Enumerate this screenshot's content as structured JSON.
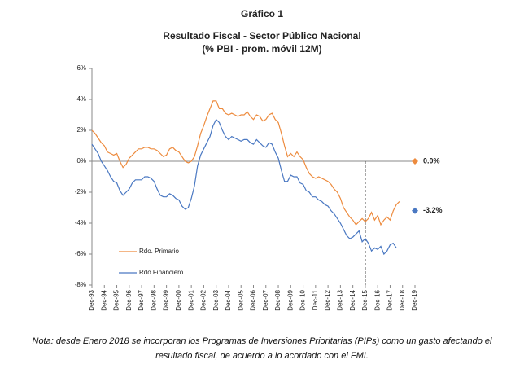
{
  "chart_data": {
    "type": "line",
    "label": "Gráfico 1",
    "title": "Resultado Fiscal - Sector Público Nacional",
    "subtitle": "(% PBI - prom. móvil 12M)",
    "note": "Nota: desde Enero 2018 se incorporan los Programas de Inversiones Prioritarias (PIPs) como un gasto afectando el resultado fiscal, de acuerdo a lo acordado con el FMI.",
    "categories": [
      "Dec-93",
      null,
      null,
      null,
      "Dec-94",
      null,
      null,
      null,
      "Dec-95",
      null,
      null,
      null,
      "Dec-96",
      null,
      null,
      null,
      "Dec-97",
      null,
      null,
      null,
      "Dec-98",
      null,
      null,
      null,
      "Dec-99",
      null,
      null,
      null,
      "Dec-00",
      null,
      null,
      null,
      "Dec-01",
      null,
      null,
      null,
      "Dec-02",
      null,
      null,
      null,
      "Dec-03",
      null,
      null,
      null,
      "Dec-04",
      null,
      null,
      null,
      "Dec-05",
      null,
      null,
      null,
      "Dec-06",
      null,
      null,
      null,
      "Dec-07",
      null,
      null,
      null,
      "Dec-08",
      null,
      null,
      null,
      "Dec-09",
      null,
      null,
      null,
      "Dec-10",
      null,
      null,
      null,
      "Dec-11",
      null,
      null,
      null,
      "Dec-12",
      null,
      null,
      null,
      "Dec-13",
      null,
      null,
      null,
      "Dec-14",
      null,
      null,
      null,
      "Dec-15",
      null,
      null,
      null,
      "Dec-16",
      null,
      null,
      null,
      "Dec-17",
      null,
      null,
      null,
      "Dec-18",
      null,
      null,
      null,
      "Dec-19"
    ],
    "series": [
      {
        "name": "Rdo. Primario",
        "color": "#ed8b3e",
        "values": [
          2.0,
          1.8,
          1.5,
          1.2,
          1.0,
          0.6,
          0.5,
          0.4,
          0.5,
          0.0,
          -0.4,
          -0.2,
          0.2,
          0.4,
          0.6,
          0.8,
          0.8,
          0.9,
          0.9,
          0.8,
          0.8,
          0.7,
          0.5,
          0.3,
          0.4,
          0.8,
          0.9,
          0.7,
          0.6,
          0.3,
          0.0,
          -0.1,
          0.0,
          0.3,
          1.0,
          1.8,
          2.3,
          2.9,
          3.4,
          3.9,
          3.9,
          3.4,
          3.4,
          3.1,
          3.0,
          3.1,
          3.0,
          2.9,
          3.0,
          3.0,
          3.2,
          2.9,
          2.7,
          3.0,
          2.9,
          2.6,
          2.7,
          3.0,
          3.1,
          2.7,
          2.5,
          1.8,
          1.0,
          0.3,
          0.5,
          0.3,
          0.6,
          0.3,
          0.1,
          -0.4,
          -0.8,
          -1.0,
          -1.1,
          -1.0,
          -1.1,
          -1.2,
          -1.3,
          -1.5,
          -1.8,
          -2.0,
          -2.4,
          -3.0,
          -3.3,
          -3.6,
          -3.8,
          -4.1,
          -3.9,
          -3.7,
          -3.9,
          -3.7,
          -3.3,
          -3.8,
          -3.5,
          -4.1,
          -3.8,
          -3.6,
          -3.8,
          -3.2,
          -2.8,
          -2.6,
          null,
          null,
          null,
          null,
          null
        ]
      },
      {
        "name": "Rdo Financiero",
        "color": "#4a78c2",
        "values": [
          1.1,
          0.8,
          0.5,
          0.0,
          -0.3,
          -0.6,
          -1.0,
          -1.3,
          -1.4,
          -1.9,
          -2.2,
          -2.0,
          -1.8,
          -1.4,
          -1.2,
          -1.2,
          -1.2,
          -1.0,
          -1.0,
          -1.1,
          -1.3,
          -1.8,
          -2.2,
          -2.3,
          -2.3,
          -2.1,
          -2.2,
          -2.4,
          -2.5,
          -2.9,
          -3.1,
          -3.0,
          -2.4,
          -1.6,
          -0.3,
          0.4,
          0.8,
          1.2,
          1.6,
          2.3,
          2.7,
          2.5,
          2.0,
          1.6,
          1.4,
          1.6,
          1.5,
          1.4,
          1.3,
          1.4,
          1.4,
          1.2,
          1.1,
          1.4,
          1.2,
          1.0,
          0.9,
          1.2,
          1.1,
          0.6,
          0.2,
          -0.6,
          -1.3,
          -1.3,
          -0.9,
          -1.0,
          -1.0,
          -1.4,
          -1.5,
          -1.9,
          -2.0,
          -2.3,
          -2.3,
          -2.5,
          -2.6,
          -2.8,
          -2.9,
          -3.2,
          -3.4,
          -3.7,
          -4.0,
          -4.4,
          -4.8,
          -5.0,
          -4.9,
          -4.7,
          -4.5,
          -5.2,
          -5.0,
          -5.3,
          -5.8,
          -5.6,
          -5.7,
          -5.5,
          -6.0,
          -5.8,
          -5.4,
          -5.3,
          -5.6,
          null,
          null,
          null,
          null,
          null,
          null
        ]
      }
    ],
    "end_markers": [
      {
        "value": 0,
        "label": "0.0%",
        "color": "#ed8b3e",
        "label_color": "#c0272d"
      },
      {
        "value": -3.2,
        "label": "-3.2%",
        "color": "#4a78c2",
        "label_color": "#4a78c2"
      }
    ],
    "vline": "Dec-15",
    "ylim": [
      -8,
      6
    ],
    "yticks": [
      {
        "value": -8,
        "label": "-8%"
      },
      {
        "value": -6,
        "label": "-6%"
      },
      {
        "value": -4,
        "label": "-4%"
      },
      {
        "value": -2,
        "label": "-2%"
      },
      {
        "value": 0,
        "label": "0%"
      },
      {
        "value": 2,
        "label": "2%"
      },
      {
        "value": 4,
        "label": "4%"
      },
      {
        "value": 6,
        "label": "6%"
      }
    ]
  }
}
